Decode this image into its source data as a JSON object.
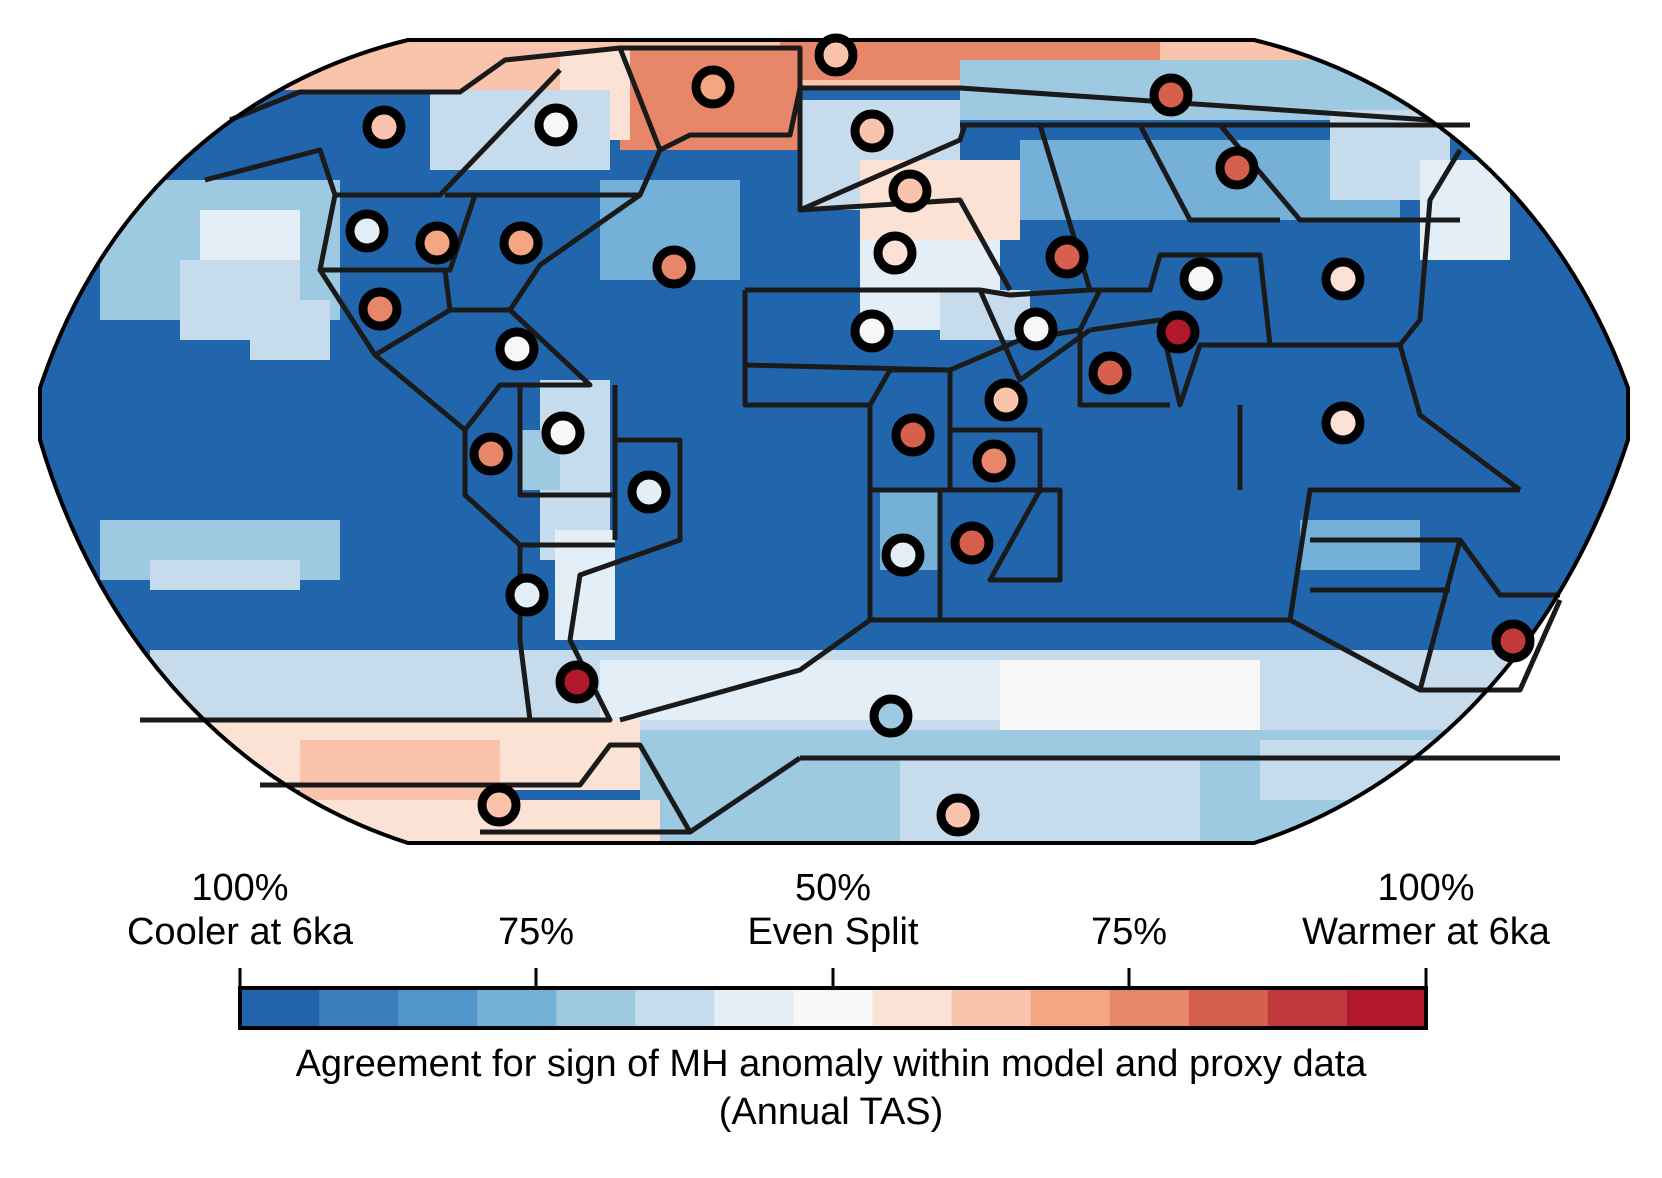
{
  "figure": {
    "colorbar": {
      "colors": [
        "#2166ac",
        "#3a7dbd",
        "#5196c8",
        "#75b0d8",
        "#9ecae1",
        "#c6dcec",
        "#e4eef6",
        "#f7f7f7",
        "#fbe2d5",
        "#f9c4ab",
        "#f4a582",
        "#e8866a",
        "#d6604d",
        "#c2393b",
        "#b2182b"
      ],
      "tick_labels": [
        {
          "top": "100%",
          "bottom": "Cooler at 6ka"
        },
        {
          "top": "",
          "bottom": "75%"
        },
        {
          "top": "50%",
          "bottom": "Even Split"
        },
        {
          "top": "",
          "bottom": "75%"
        },
        {
          "top": "100%",
          "bottom": "Warmer at 6ka"
        }
      ],
      "label_line1": "Agreement for sign of MH anomaly within model and proxy data",
      "label_line2": "(Annual TAS)"
    },
    "map": {
      "projection": "Robinson (global)",
      "ocean_base_color": "#2166ac",
      "region_boundary_color": "#1a1a1a",
      "proxy_site_color_scale": "same as colorbar; fill = agreement value (-1 = 100% cooler, 0 = even split, +1 = 100% warmer)"
    }
  }
}
